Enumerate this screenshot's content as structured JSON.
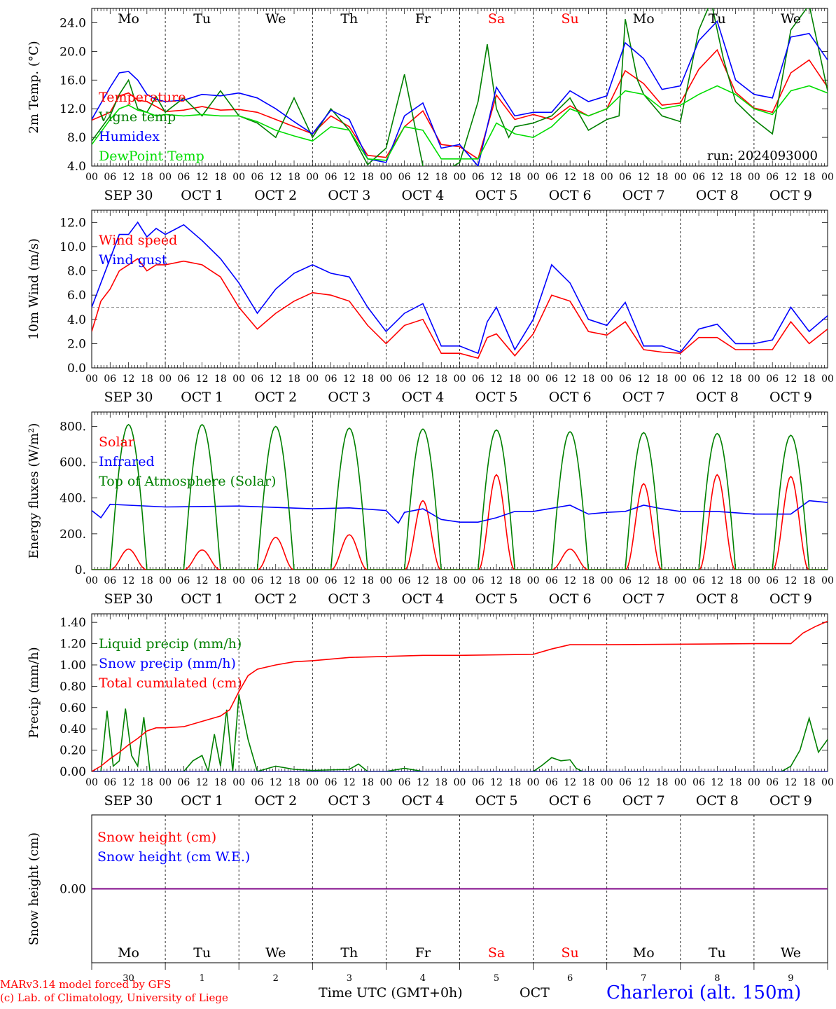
{
  "footer": {
    "credit_line1": "MARv3.14 model forced by GFS",
    "credit_line2": "(c) Lab. of Climatology, University of Liege",
    "xlabel": "Time UTC (GMT+0h)",
    "month": "OCT",
    "station": "Charleroi (alt. 150m)"
  },
  "colors": {
    "red": "#ff0000",
    "blue": "#0000ff",
    "green": "#008000",
    "lightgreen": "#00dd00",
    "purple": "#800080",
    "weekend": "#ff0000",
    "text": "#000000"
  },
  "days": {
    "names": [
      "Mo",
      "Tu",
      "We",
      "Th",
      "Fr",
      "Sa",
      "Su",
      "Mo",
      "Tu",
      "We"
    ],
    "weekend": [
      false,
      false,
      false,
      false,
      false,
      true,
      true,
      false,
      false,
      false
    ],
    "dates": [
      "SEP 30",
      "OCT 1",
      "OCT 2",
      "OCT 3",
      "OCT 4",
      "OCT 5",
      "OCT 6",
      "OCT 7",
      "OCT 8",
      "OCT 9"
    ],
    "day_numbers": [
      "30",
      "1",
      "2",
      "3",
      "4",
      "5",
      "6",
      "7",
      "8",
      "9"
    ],
    "hour_ticks": [
      "00",
      "06",
      "12",
      "18"
    ],
    "end_tick": "00"
  },
  "chart_data": [
    {
      "id": "temp",
      "type": "line",
      "ylabel": "2m Temp. (°C)",
      "ylim": [
        4,
        26
      ],
      "yticks": [
        "4.0",
        "8.0",
        "12.0",
        "16.0",
        "20.0",
        "24.0"
      ],
      "ytick_values": [
        4,
        8,
        12,
        16,
        20,
        24
      ],
      "annotation": "run: 2024093000",
      "x_unit": "hours since SEP 30 00 UTC",
      "series": [
        {
          "name": "Temperature",
          "color": "#ff0000",
          "x": [
            0,
            6,
            9,
            12,
            15,
            18,
            21,
            24,
            30,
            36,
            42,
            48,
            54,
            60,
            66,
            72,
            78,
            84,
            90,
            96,
            102,
            108,
            114,
            120,
            126,
            132,
            138,
            144,
            150,
            156,
            162,
            168,
            174,
            180,
            186,
            192,
            198,
            204,
            210,
            216,
            222,
            228,
            234,
            240
          ],
          "y": [
            10.4,
            11.5,
            13.8,
            14.2,
            13.2,
            13.0,
            12.3,
            11.6,
            11.8,
            12.3,
            11.8,
            11.9,
            11.5,
            10.5,
            9.5,
            8.5,
            11.0,
            9.5,
            5.5,
            5.2,
            9.5,
            11.7,
            7.0,
            6.7,
            5.0,
            13.9,
            10.5,
            11.2,
            10.5,
            12.4,
            11.0,
            12.0,
            17.3,
            15.5,
            12.5,
            12.8,
            17.5,
            20.2,
            14.3,
            12.1,
            11.5,
            17.0,
            18.8,
            15.0
          ]
        },
        {
          "name": "Vigne temp",
          "color": "#008000",
          "x": [
            0,
            6,
            9,
            12,
            15,
            18,
            21,
            24,
            30,
            36,
            42,
            48,
            54,
            60,
            66,
            72,
            78,
            84,
            90,
            96,
            102,
            108,
            114,
            120,
            126,
            129,
            132,
            136,
            138,
            144,
            150,
            156,
            162,
            168,
            172,
            174,
            178,
            180,
            186,
            192,
            198,
            202,
            206,
            210,
            216,
            222,
            228,
            234,
            240
          ],
          "y": [
            7.5,
            11.0,
            14.0,
            16.0,
            12.0,
            11.5,
            13.7,
            11.5,
            13.5,
            11.0,
            14.5,
            11.0,
            10.0,
            8.0,
            13.5,
            8.0,
            12.0,
            9.0,
            4.2,
            6.5,
            16.8,
            4.0,
            3.0,
            4.5,
            13.0,
            21.0,
            12.0,
            8.0,
            9.5,
            10.0,
            11.0,
            13.5,
            9.0,
            10.5,
            11.0,
            24.5,
            16.0,
            14.0,
            11.0,
            10.2,
            23.0,
            27.0,
            19.0,
            13.0,
            10.5,
            8.5,
            23.0,
            26.5,
            14.5
          ]
        },
        {
          "name": "Humidex",
          "color": "#0000ff",
          "x": [
            0,
            6,
            9,
            12,
            15,
            18,
            21,
            24,
            30,
            36,
            42,
            48,
            54,
            60,
            66,
            72,
            78,
            84,
            90,
            96,
            102,
            108,
            114,
            120,
            126,
            132,
            138,
            144,
            150,
            156,
            162,
            168,
            174,
            180,
            186,
            192,
            198,
            204,
            210,
            216,
            222,
            228,
            234,
            240
          ],
          "y": [
            10.5,
            15.0,
            17.0,
            17.2,
            16.0,
            14.0,
            13.3,
            13.0,
            13.2,
            14.0,
            13.8,
            14.2,
            13.5,
            12.0,
            10.2,
            8.5,
            11.8,
            10.5,
            5.0,
            4.5,
            11.0,
            12.8,
            6.5,
            7.0,
            4.0,
            15.0,
            11.0,
            11.5,
            11.5,
            14.5,
            13.0,
            13.8,
            21.2,
            19.0,
            14.7,
            15.2,
            21.5,
            24.2,
            16.0,
            14.0,
            13.5,
            22.0,
            22.5,
            18.8
          ]
        },
        {
          "name": "DewPoint Temp",
          "color": "#00dd00",
          "x": [
            0,
            6,
            9,
            12,
            15,
            18,
            21,
            24,
            30,
            36,
            42,
            48,
            54,
            60,
            66,
            72,
            78,
            84,
            90,
            96,
            102,
            108,
            114,
            120,
            126,
            132,
            138,
            144,
            150,
            156,
            162,
            168,
            174,
            180,
            186,
            192,
            198,
            204,
            210,
            216,
            222,
            228,
            234,
            240
          ],
          "y": [
            7.0,
            10.5,
            12.0,
            12.5,
            11.8,
            11.5,
            11.0,
            11.2,
            11.0,
            11.2,
            11.0,
            11.0,
            10.2,
            9.0,
            8.2,
            7.5,
            9.5,
            9.0,
            5.0,
            4.8,
            9.5,
            9.0,
            5.0,
            5.0,
            5.0,
            10.0,
            8.5,
            8.0,
            9.5,
            12.0,
            11.0,
            12.0,
            14.5,
            14.0,
            12.0,
            12.5,
            14.0,
            15.2,
            14.0,
            12.0,
            11.2,
            14.5,
            15.2,
            14.2
          ]
        }
      ]
    },
    {
      "id": "wind",
      "type": "line",
      "ylabel": "10m Wind (m/s)",
      "ylim": [
        0,
        13
      ],
      "yticks": [
        "0.0",
        "2.0",
        "4.0",
        "6.0",
        "8.0",
        "10.0",
        "12.0"
      ],
      "ytick_values": [
        0,
        2,
        4,
        6,
        8,
        10,
        12
      ],
      "reference_line": 5,
      "x_unit": "hours since SEP 30 00 UTC",
      "series": [
        {
          "name": "Wind speed",
          "color": "#ff0000",
          "x": [
            0,
            3,
            6,
            9,
            12,
            15,
            18,
            21,
            24,
            30,
            36,
            42,
            48,
            54,
            60,
            66,
            72,
            78,
            84,
            90,
            96,
            102,
            108,
            114,
            120,
            126,
            129,
            132,
            138,
            144,
            150,
            156,
            162,
            168,
            174,
            180,
            186,
            192,
            198,
            204,
            210,
            216,
            222,
            228,
            234,
            240
          ],
          "y": [
            3.0,
            5.5,
            6.5,
            8.0,
            8.5,
            9.0,
            8.0,
            8.5,
            8.5,
            8.8,
            8.5,
            7.5,
            5.0,
            3.2,
            4.5,
            5.5,
            6.2,
            6.0,
            5.5,
            3.5,
            2.0,
            3.5,
            4.0,
            1.2,
            1.2,
            0.8,
            2.5,
            2.8,
            1.0,
            2.8,
            6.0,
            5.5,
            3.0,
            2.7,
            3.8,
            1.5,
            1.3,
            1.2,
            2.5,
            2.5,
            1.5,
            1.5,
            1.5,
            3.8,
            2.0,
            3.2
          ]
        },
        {
          "name": "Wind gust",
          "color": "#0000ff",
          "x": [
            0,
            3,
            6,
            9,
            12,
            15,
            18,
            21,
            24,
            30,
            36,
            42,
            48,
            54,
            60,
            66,
            72,
            78,
            84,
            90,
            96,
            102,
            108,
            114,
            120,
            126,
            129,
            132,
            138,
            144,
            150,
            156,
            162,
            168,
            174,
            180,
            186,
            192,
            198,
            204,
            210,
            216,
            222,
            228,
            234,
            240
          ],
          "y": [
            5.0,
            7.0,
            9.0,
            11.0,
            11.0,
            12.0,
            10.8,
            11.5,
            11.0,
            11.8,
            10.5,
            9.0,
            7.0,
            4.5,
            6.5,
            7.8,
            8.5,
            7.8,
            7.5,
            5.0,
            3.0,
            4.5,
            5.3,
            1.8,
            1.8,
            1.2,
            3.8,
            5.0,
            1.5,
            4.0,
            8.5,
            7.0,
            4.0,
            3.5,
            5.4,
            1.8,
            1.8,
            1.3,
            3.2,
            3.6,
            2.0,
            2.0,
            2.3,
            5.0,
            3.0,
            4.3
          ]
        }
      ]
    },
    {
      "id": "flux",
      "type": "line",
      "ylabel": "Energy fluxes (W/m²)",
      "ylim": [
        0,
        880
      ],
      "yticks": [
        "0.",
        "200.",
        "400.",
        "600.",
        "800."
      ],
      "ytick_values": [
        0,
        200,
        400,
        600,
        800
      ],
      "x_unit": "hours since SEP 30 00 UTC",
      "series": [
        {
          "name": "Solar",
          "color": "#ff0000",
          "daily_peak": [
            115,
            110,
            180,
            195,
            385,
            530,
            115,
            480,
            530,
            520
          ],
          "sunrise_hour": 6,
          "sunset_hour": 18
        },
        {
          "name": "Infrared",
          "color": "#0000ff",
          "x": [
            0,
            3,
            6,
            12,
            24,
            48,
            72,
            84,
            96,
            100,
            102,
            108,
            114,
            120,
            126,
            132,
            138,
            144,
            156,
            162,
            168,
            174,
            180,
            186,
            192,
            204,
            216,
            228,
            234,
            240
          ],
          "y": [
            330,
            290,
            365,
            360,
            350,
            355,
            340,
            345,
            330,
            260,
            320,
            340,
            280,
            265,
            265,
            290,
            325,
            325,
            360,
            310,
            320,
            325,
            360,
            340,
            325,
            325,
            310,
            310,
            385,
            375
          ]
        },
        {
          "name": "Top of Atmosphere (Solar)",
          "color": "#008000",
          "daily_peak": [
            810,
            810,
            800,
            790,
            785,
            780,
            770,
            765,
            760,
            750
          ],
          "sunrise_hour": 6,
          "sunset_hour": 18
        }
      ]
    },
    {
      "id": "precip",
      "type": "line",
      "ylabel": "Precip (mm/h)",
      "ylim": [
        0,
        1.48
      ],
      "yticks": [
        "0.00",
        "0.20",
        "0.40",
        "0.60",
        "0.80",
        "1.00",
        "1.20",
        "1.40"
      ],
      "ytick_values": [
        0,
        0.2,
        0.4,
        0.6,
        0.8,
        1.0,
        1.2,
        1.4
      ],
      "x_unit": "hours since SEP 30 00 UTC",
      "series": [
        {
          "name": "Liquid precip (mm/h)",
          "color": "#008000",
          "x": [
            0,
            3,
            5,
            7,
            9,
            11,
            13,
            15,
            17,
            19,
            21,
            24,
            30,
            33,
            36,
            38,
            40,
            42,
            44,
            46,
            48,
            51,
            54,
            60,
            66,
            72,
            84,
            87,
            90,
            96,
            102,
            108,
            120,
            144,
            147,
            150,
            153,
            156,
            158,
            160,
            168,
            216,
            219,
            222,
            225,
            228,
            231,
            234,
            237,
            240
          ],
          "y": [
            0,
            0,
            0.57,
            0.05,
            0.1,
            0.59,
            0.15,
            0.05,
            0.51,
            0,
            0,
            0,
            0,
            0.1,
            0.15,
            0,
            0.35,
            0.05,
            0.58,
            0,
            0.72,
            0.3,
            0,
            0.05,
            0.02,
            0.01,
            0.02,
            0.07,
            0,
            0,
            0.03,
            0,
            0,
            0,
            0.06,
            0.13,
            0.1,
            0.11,
            0.03,
            0,
            0,
            0,
            0,
            0,
            0,
            0.05,
            0.2,
            0.5,
            0.18,
            0.3
          ]
        },
        {
          "name": "Snow precip (mm/h)",
          "color": "#0000ff",
          "x": [
            0,
            240
          ],
          "y": [
            0,
            0
          ]
        },
        {
          "name": "Total cumulated (cm)",
          "color": "#ff0000",
          "x": [
            0,
            3,
            6,
            9,
            12,
            15,
            18,
            21,
            24,
            30,
            36,
            42,
            45,
            48,
            51,
            54,
            60,
            66,
            72,
            84,
            96,
            108,
            120,
            144,
            150,
            156,
            168,
            216,
            228,
            232,
            236,
            240
          ],
          "y": [
            0,
            0.05,
            0.12,
            0.18,
            0.25,
            0.31,
            0.38,
            0.41,
            0.41,
            0.42,
            0.47,
            0.52,
            0.58,
            0.75,
            0.9,
            0.96,
            1.0,
            1.03,
            1.04,
            1.07,
            1.08,
            1.09,
            1.09,
            1.1,
            1.15,
            1.19,
            1.19,
            1.2,
            1.2,
            1.3,
            1.36,
            1.41
          ]
        }
      ]
    },
    {
      "id": "snow",
      "type": "line",
      "ylabel": "Snow height (cm)",
      "ylim": [
        -1,
        1
      ],
      "yticks": [
        "0.00"
      ],
      "ytick_values": [
        0
      ],
      "x_unit": "hours since SEP 30 00 UTC",
      "series": [
        {
          "name": "Snow height (cm)",
          "color": "#ff0000",
          "x": [
            0,
            240
          ],
          "y": [
            0,
            0
          ]
        },
        {
          "name": "Snow height (cm W.E.)",
          "color": "#0000ff",
          "x": [
            0,
            240
          ],
          "y": [
            0,
            0
          ]
        }
      ]
    }
  ]
}
